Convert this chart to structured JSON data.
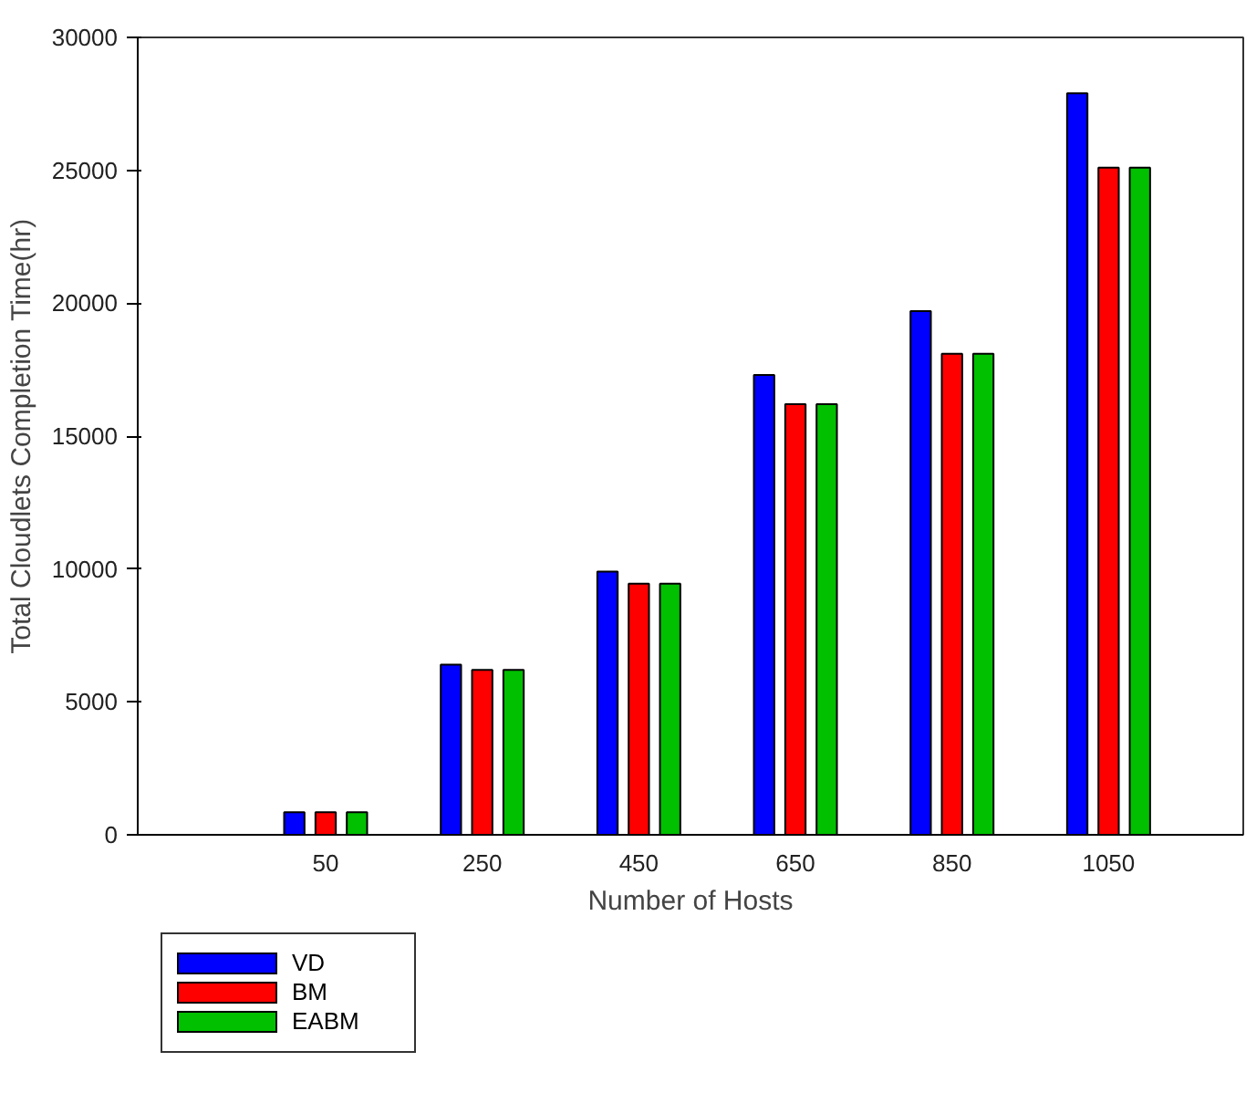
{
  "chart_data": {
    "type": "bar",
    "xlabel": "Number of Hosts",
    "ylabel": "Total Cloudlets Completion Time(hr)",
    "categories": [
      "50",
      "250",
      "450",
      "650",
      "850",
      "1050"
    ],
    "series": [
      {
        "name": "VD",
        "color": "#0000ff",
        "values": [
          850,
          6400,
          9900,
          17300,
          19700,
          27900
        ]
      },
      {
        "name": "BM",
        "color": "#ff0000",
        "values": [
          850,
          6200,
          9450,
          16200,
          18100,
          25100
        ]
      },
      {
        "name": "EABM",
        "color": "#00c000",
        "values": [
          850,
          6200,
          9450,
          16200,
          18100,
          25100
        ]
      }
    ],
    "ylim": [
      0,
      30000
    ],
    "yticks": [
      0,
      5000,
      10000,
      15000,
      20000,
      25000,
      30000
    ],
    "grid": false,
    "legend": "bottom left"
  }
}
